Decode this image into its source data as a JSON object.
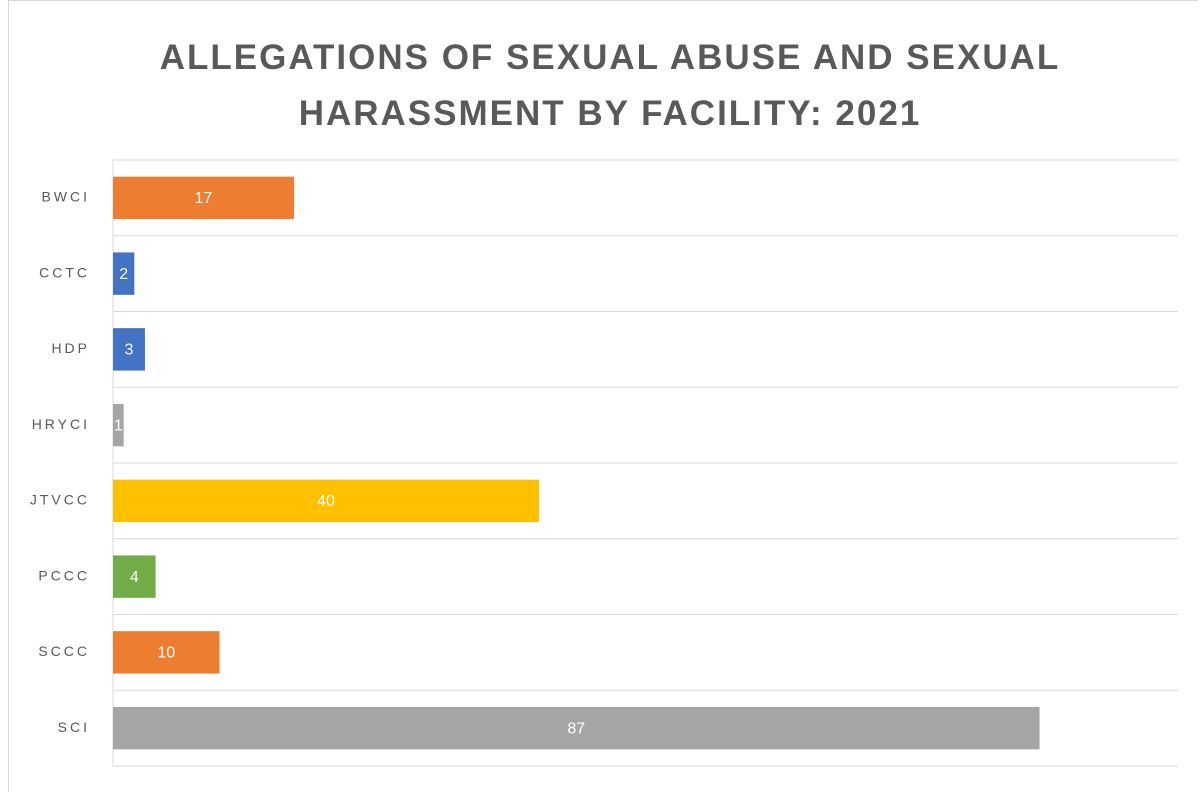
{
  "chart_data": {
    "type": "hbar",
    "title": "ALLEGATIONS OF SEXUAL ABUSE AND SEXUAL HARASSMENT BY FACILITY: 2021",
    "categories": [
      "BWCI",
      "CCTC",
      "HDP",
      "HRYCI",
      "JTVCC",
      "PCCC",
      "SCCC",
      "SCI"
    ],
    "values": [
      17,
      2,
      3,
      1,
      40,
      4,
      10,
      87
    ],
    "colors": [
      "#ed7d31",
      "#4472c4",
      "#4472c4",
      "#a5a5a5",
      "#ffc000",
      "#70ad47",
      "#ed7d31",
      "#a5a5a5"
    ],
    "xlim": [
      0,
      100
    ],
    "grid": true,
    "data_labels": true
  }
}
